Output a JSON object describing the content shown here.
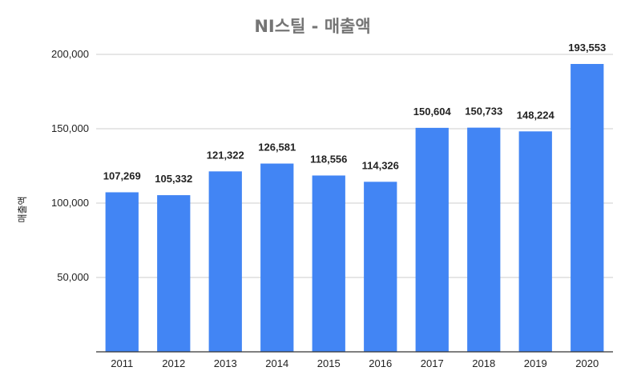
{
  "chart_data": {
    "type": "bar",
    "title": "NI스틸 - 매출액",
    "xlabel": "",
    "ylabel": "매출액",
    "categories": [
      "2011",
      "2012",
      "2013",
      "2014",
      "2015",
      "2016",
      "2017",
      "2018",
      "2019",
      "2020"
    ],
    "values": [
      107269,
      105332,
      121322,
      126581,
      118556,
      114326,
      150604,
      150733,
      148224,
      193553
    ],
    "value_labels": [
      "107,269",
      "105,332",
      "121,322",
      "126,581",
      "118,556",
      "114,326",
      "150,604",
      "150,733",
      "148,224",
      "193,553"
    ],
    "ylim": [
      0,
      200000
    ],
    "yticks": [
      50000,
      100000,
      150000,
      200000
    ],
    "ytick_labels": [
      "50,000",
      "100,000",
      "150,000",
      "200,000"
    ],
    "grid": true,
    "legend": "none",
    "bar_color": "#4285f4"
  }
}
